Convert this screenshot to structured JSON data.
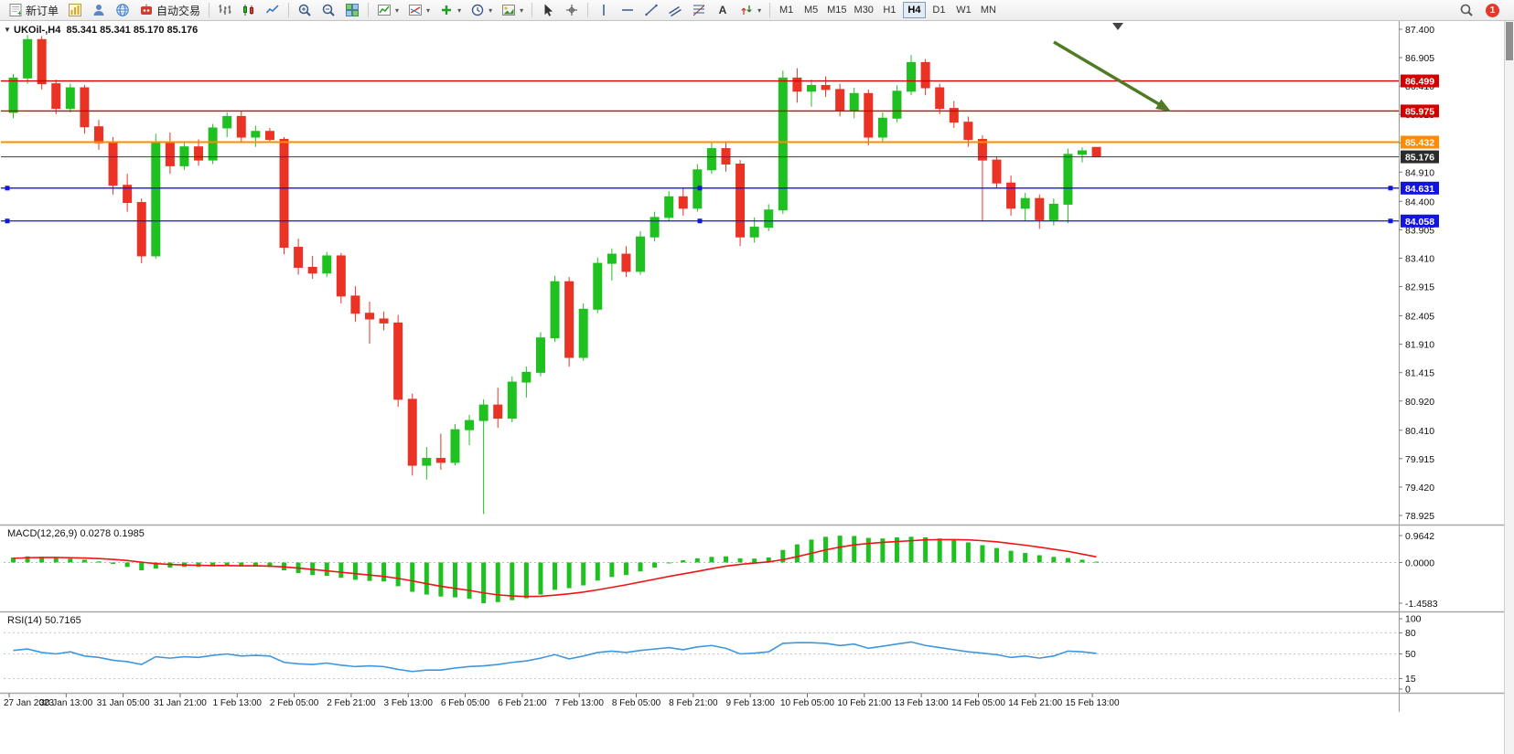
{
  "toolbar": {
    "notification_count": "1",
    "left_items": [
      {
        "name": "new-order-button",
        "icon": "new-order",
        "label": "新订单"
      },
      {
        "name": "new-chart-button",
        "icon": "chart-window"
      },
      {
        "name": "profiles-button",
        "icon": "profiles"
      },
      {
        "name": "community-button",
        "icon": "globe"
      },
      {
        "name": "autotrading-button",
        "icon": "autotrading",
        "label": "自动交易"
      },
      {
        "sep": true
      },
      {
        "name": "bar-chart-mode-button",
        "icon": "bars-mode"
      },
      {
        "name": "candle-chart-mode-button",
        "icon": "candles-mode"
      },
      {
        "name": "line-chart-mode-button",
        "icon": "line-mode"
      },
      {
        "sep": true
      },
      {
        "name": "zoom-in-button",
        "icon": "zoom-in"
      },
      {
        "name": "zoom-out-button",
        "icon": "zoom-out"
      },
      {
        "name": "tile-windows-button",
        "icon": "tile-windows"
      },
      {
        "sep": true
      },
      {
        "name": "indicators-button",
        "icon": "indicators",
        "drop": true
      },
      {
        "name": "objects-list-button",
        "icon": "objects",
        "drop": true
      },
      {
        "name": "add-indicator-button",
        "icon": "plus",
        "drop": true
      },
      {
        "name": "periods-button",
        "icon": "clock",
        "drop": true
      },
      {
        "name": "templates-button",
        "icon": "template",
        "drop": true
      },
      {
        "sep": true
      },
      {
        "name": "cursor-button",
        "icon": "cursor"
      },
      {
        "name": "crosshair-button",
        "icon": "crosshair"
      },
      {
        "sep": true
      },
      {
        "name": "vertical-line-button",
        "icon": "vline"
      },
      {
        "name": "horizontal-line-button",
        "icon": "hline"
      },
      {
        "name": "trendline-button",
        "icon": "tline"
      },
      {
        "name": "channel-button",
        "icon": "channel"
      },
      {
        "name": "fibonacci-button",
        "icon": "fibo"
      },
      {
        "name": "text-tool-button",
        "icon": "text-a"
      },
      {
        "name": "arrows-tool-button",
        "icon": "arrows",
        "drop": true
      },
      {
        "sep": true
      }
    ],
    "timeframes": [
      "M1",
      "M5",
      "M15",
      "M30",
      "H1",
      "H4",
      "D1",
      "W1",
      "MN"
    ],
    "active_timeframe": "H4"
  },
  "chart": {
    "title": "UKOil-,H4  85.341 85.341 85.170 85.176",
    "one_click_glyph": "▼",
    "price_axis": [
      "87.400",
      "86.905",
      "86.410",
      "85.915",
      "85.420",
      "84.910",
      "84.400",
      "83.905",
      "83.410",
      "82.915",
      "82.405",
      "81.910",
      "81.415",
      "80.920",
      "80.410",
      "79.915",
      "79.420",
      "78.925"
    ],
    "hlines": [
      {
        "name": "resistance-line-1",
        "price": 86.499,
        "label": "86.499",
        "color": "#d40000",
        "w": 1.3
      },
      {
        "name": "resistance-line-2",
        "price": 85.975,
        "label": "85.975",
        "color": "#d40000",
        "w": 1.3
      },
      {
        "name": "pivot-line",
        "price": 85.432,
        "label": "85.432",
        "color": "#ff8c00",
        "w": 2
      },
      {
        "name": "bid-price-line",
        "price": 85.176,
        "label": "85.176",
        "color": "#3c3c3c",
        "box": "#2b2b2b",
        "w": 1
      },
      {
        "name": "support-line-1",
        "price": 84.631,
        "label": "84.631",
        "color": "#1414e0",
        "w": 1.3,
        "handles": true
      },
      {
        "name": "support-line-2",
        "price": 84.058,
        "label": "84.058",
        "color": "#1414e0",
        "w": 1.3,
        "handles": true
      }
    ],
    "time_labels": [
      "27 Jan 2023",
      "30 Jan 13:00",
      "31 Jan 05:00",
      "31 Jan 21:00",
      "1 Feb 13:00",
      "2 Feb 05:00",
      "2 Feb 21:00",
      "3 Feb 13:00",
      "6 Feb 05:00",
      "6 Feb 21:00",
      "7 Feb 13:00",
      "8 Feb 05:00",
      "8 Feb 21:00",
      "9 Feb 13:00",
      "10 Feb 05:00",
      "10 Feb 21:00",
      "13 Feb 13:00",
      "14 Feb 05:00",
      "14 Feb 21:00",
      "15 Feb 13:00"
    ]
  },
  "chart_data": {
    "type": "candlestick",
    "symbol": "UKOil-",
    "timeframe": "H4",
    "ohlc_current": {
      "open": "85.341",
      "high": "85.341",
      "low": "85.170",
      "close": "85.176"
    },
    "y_range": [
      78.925,
      87.4
    ],
    "candles": [
      [
        85.95,
        86.62,
        85.85,
        86.55
      ],
      [
        86.55,
        87.3,
        86.45,
        87.22
      ],
      [
        87.22,
        87.28,
        86.35,
        86.45
      ],
      [
        86.45,
        86.52,
        85.92,
        86.02
      ],
      [
        86.02,
        86.45,
        85.95,
        86.38
      ],
      [
        86.38,
        86.43,
        85.58,
        85.7
      ],
      [
        85.7,
        85.82,
        85.3,
        85.42
      ],
      [
        85.42,
        85.52,
        84.52,
        84.68
      ],
      [
        84.68,
        84.88,
        84.22,
        84.38
      ],
      [
        84.38,
        84.45,
        83.32,
        83.45
      ],
      [
        83.45,
        85.58,
        83.4,
        85.42
      ],
      [
        85.42,
        85.6,
        84.88,
        85.02
      ],
      [
        85.02,
        85.45,
        84.95,
        85.35
      ],
      [
        85.35,
        85.48,
        85.02,
        85.12
      ],
      [
        85.12,
        85.75,
        85.05,
        85.68
      ],
      [
        85.68,
        85.95,
        85.52,
        85.88
      ],
      [
        85.88,
        85.98,
        85.42,
        85.52
      ],
      [
        85.52,
        85.72,
        85.35,
        85.62
      ],
      [
        85.62,
        85.68,
        85.42,
        85.48
      ],
      [
        85.48,
        85.52,
        83.48,
        83.6
      ],
      [
        83.6,
        83.75,
        83.12,
        83.25
      ],
      [
        83.25,
        83.45,
        83.05,
        83.15
      ],
      [
        83.15,
        83.52,
        83.08,
        83.45
      ],
      [
        83.45,
        83.5,
        82.62,
        82.75
      ],
      [
        82.75,
        82.92,
        82.3,
        82.45
      ],
      [
        82.45,
        82.65,
        81.92,
        82.35
      ],
      [
        82.35,
        82.48,
        82.15,
        82.28
      ],
      [
        82.28,
        82.42,
        80.82,
        80.95
      ],
      [
        80.95,
        81.05,
        79.62,
        79.8
      ],
      [
        79.8,
        80.12,
        79.55,
        79.92
      ],
      [
        79.92,
        80.35,
        79.72,
        79.85
      ],
      [
        79.85,
        80.52,
        79.8,
        80.42
      ],
      [
        80.42,
        80.68,
        80.15,
        80.58
      ],
      [
        80.58,
        80.95,
        78.95,
        80.85
      ],
      [
        80.85,
        81.15,
        80.45,
        80.62
      ],
      [
        80.62,
        81.35,
        80.55,
        81.25
      ],
      [
        81.25,
        81.52,
        80.98,
        81.42
      ],
      [
        81.42,
        82.12,
        81.35,
        82.02
      ],
      [
        82.02,
        83.1,
        81.95,
        83.0
      ],
      [
        83.0,
        83.08,
        81.52,
        81.68
      ],
      [
        81.68,
        82.62,
        81.62,
        82.52
      ],
      [
        82.52,
        83.42,
        82.45,
        83.32
      ],
      [
        83.32,
        83.58,
        83.02,
        83.48
      ],
      [
        83.48,
        83.62,
        83.08,
        83.18
      ],
      [
        83.18,
        83.88,
        83.12,
        83.78
      ],
      [
        83.78,
        84.22,
        83.7,
        84.12
      ],
      [
        84.12,
        84.58,
        84.05,
        84.48
      ],
      [
        84.48,
        84.62,
        84.15,
        84.28
      ],
      [
        84.28,
        85.05,
        84.22,
        84.95
      ],
      [
        84.95,
        85.42,
        84.88,
        85.32
      ],
      [
        85.32,
        85.45,
        84.92,
        85.05
      ],
      [
        85.05,
        85.12,
        83.62,
        83.78
      ],
      [
        83.78,
        84.12,
        83.68,
        83.95
      ],
      [
        83.95,
        84.35,
        83.88,
        84.25
      ],
      [
        84.25,
        86.68,
        84.18,
        86.55
      ],
      [
        86.55,
        86.72,
        86.12,
        86.32
      ],
      [
        86.32,
        86.52,
        86.05,
        86.42
      ],
      [
        86.42,
        86.58,
        86.22,
        86.35
      ],
      [
        86.35,
        86.45,
        85.88,
        85.98
      ],
      [
        85.98,
        86.38,
        85.85,
        86.28
      ],
      [
        86.28,
        86.35,
        85.38,
        85.52
      ],
      [
        85.52,
        85.95,
        85.42,
        85.85
      ],
      [
        85.85,
        86.42,
        85.78,
        86.32
      ],
      [
        86.32,
        86.95,
        86.25,
        86.82
      ],
      [
        86.82,
        86.88,
        86.25,
        86.38
      ],
      [
        86.38,
        86.45,
        85.92,
        86.02
      ],
      [
        86.02,
        86.15,
        85.68,
        85.78
      ],
      [
        85.78,
        85.88,
        85.35,
        85.48
      ],
      [
        85.48,
        85.55,
        84.06,
        85.12
      ],
      [
        85.12,
        85.18,
        84.62,
        84.72
      ],
      [
        84.72,
        84.85,
        84.15,
        84.28
      ],
      [
        84.28,
        84.55,
        84.05,
        84.45
      ],
      [
        84.45,
        84.52,
        83.92,
        84.08
      ],
      [
        84.08,
        84.45,
        83.98,
        84.35
      ],
      [
        84.35,
        85.32,
        84.02,
        85.22
      ],
      [
        85.22,
        85.34,
        85.08,
        85.28
      ],
      [
        85.341,
        85.341,
        85.17,
        85.176
      ]
    ],
    "indicators": {
      "macd": {
        "label": "MACD(12,26,9) 0.0278 0.1985",
        "params": "12,26,9",
        "value": "0.0278",
        "signal_value": "0.1985",
        "range": [
          -1.4583,
          0.9642
        ],
        "scale": [
          {
            "label": "0.9642",
            "value": 0.9642
          },
          {
            "label": "0.0000",
            "value": 0
          },
          {
            "label": "-1.4583",
            "value": -1.4583
          }
        ],
        "histogram": [
          0.18,
          0.22,
          0.2,
          0.16,
          0.14,
          0.1,
          0.04,
          -0.05,
          -0.16,
          -0.28,
          -0.22,
          -0.18,
          -0.16,
          -0.16,
          -0.14,
          -0.12,
          -0.14,
          -0.15,
          -0.16,
          -0.28,
          -0.38,
          -0.45,
          -0.48,
          -0.55,
          -0.62,
          -0.66,
          -0.68,
          -0.85,
          -1.05,
          -1.15,
          -1.22,
          -1.25,
          -1.3,
          -1.46,
          -1.42,
          -1.35,
          -1.28,
          -1.15,
          -0.98,
          -0.92,
          -0.82,
          -0.65,
          -0.52,
          -0.45,
          -0.32,
          -0.18,
          -0.02,
          0.08,
          0.15,
          0.2,
          0.22,
          0.15,
          0.14,
          0.18,
          0.45,
          0.65,
          0.82,
          0.92,
          0.96,
          0.95,
          0.88,
          0.86,
          0.9,
          0.92,
          0.9,
          0.86,
          0.8,
          0.72,
          0.62,
          0.52,
          0.42,
          0.34,
          0.26,
          0.2,
          0.16,
          0.1,
          0.03
        ],
        "signal": [
          0.15,
          0.17,
          0.18,
          0.18,
          0.17,
          0.16,
          0.14,
          0.11,
          0.07,
          0.01,
          -0.04,
          -0.07,
          -0.09,
          -0.1,
          -0.11,
          -0.11,
          -0.12,
          -0.12,
          -0.13,
          -0.16,
          -0.2,
          -0.25,
          -0.3,
          -0.35,
          -0.4,
          -0.45,
          -0.5,
          -0.57,
          -0.66,
          -0.76,
          -0.85,
          -0.93,
          -1.0,
          -1.09,
          -1.16,
          -1.2,
          -1.22,
          -1.21,
          -1.17,
          -1.12,
          -1.06,
          -0.98,
          -0.89,
          -0.8,
          -0.7,
          -0.6,
          -0.5,
          -0.41,
          -0.32,
          -0.22,
          -0.13,
          -0.07,
          -0.02,
          0.02,
          0.1,
          0.21,
          0.33,
          0.45,
          0.55,
          0.63,
          0.68,
          0.72,
          0.75,
          0.78,
          0.81,
          0.82,
          0.82,
          0.81,
          0.78,
          0.74,
          0.68,
          0.62,
          0.55,
          0.47,
          0.4,
          0.3,
          0.2
        ]
      },
      "rsi": {
        "label": "RSI(14) 50.7165",
        "period": "14",
        "value": "50.7165",
        "scale": [
          {
            "label": "100",
            "value": 100
          },
          {
            "label": "80",
            "value": 80
          },
          {
            "label": "50",
            "value": 50
          },
          {
            "label": "15",
            "value": 15
          },
          {
            "label": "0",
            "value": 0
          }
        ],
        "levels": [
          80,
          50,
          15
        ],
        "values": [
          55,
          57,
          52,
          50,
          53,
          47,
          45,
          41,
          39,
          35,
          46,
          44,
          46,
          45,
          48,
          50,
          47,
          48,
          47,
          38,
          36,
          35,
          37,
          34,
          32,
          33,
          32,
          28,
          25,
          27,
          27,
          30,
          32,
          33,
          35,
          38,
          40,
          44,
          49,
          43,
          47,
          52,
          54,
          52,
          55,
          57,
          59,
          56,
          60,
          62,
          58,
          50,
          51,
          53,
          65,
          66,
          66,
          65,
          62,
          64,
          58,
          61,
          64,
          67,
          62,
          59,
          56,
          53,
          51,
          49,
          45,
          47,
          44,
          47,
          54,
          53,
          50.7
        ]
      }
    }
  },
  "colors": {
    "bull": "#1fc121",
    "bear": "#ea3325",
    "macd_hist": "#1fc121",
    "macd_signal": "#f01414",
    "rsi_line": "#3e97de",
    "arrow": "#4e7b23",
    "axis_text": "#111111"
  }
}
